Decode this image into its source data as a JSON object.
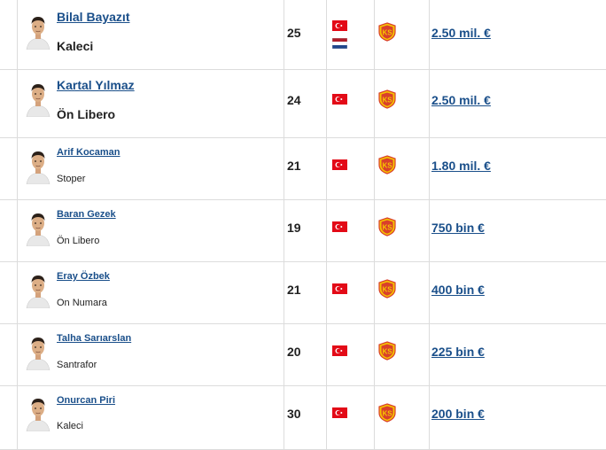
{
  "colors": {
    "link": "#1a4f8a",
    "turkey_red": "#e30a17",
    "club_red": "#d9402b",
    "club_yellow": "#f5c400"
  },
  "icons": {
    "flag_turkey": "turkey-flag-icon",
    "flag_netherlands": "netherlands-flag-icon",
    "club": "kayserispor-badge-icon"
  },
  "players": [
    {
      "name": "Bilal Bayazıt",
      "position": "Kaleci",
      "age": "25",
      "flags": [
        "turkey",
        "netherlands"
      ],
      "club_badge": "KS",
      "market_value": "2.50 mil. €"
    },
    {
      "name": "Kartal Yılmaz",
      "position": "Ön Libero",
      "age": "24",
      "flags": [
        "turkey"
      ],
      "club_badge": "KS",
      "market_value": "2.50 mil. €"
    },
    {
      "name": "Arif Kocaman",
      "position": "Stoper",
      "age": "21",
      "flags": [
        "turkey"
      ],
      "club_badge": "KS",
      "market_value": "1.80 mil. €"
    },
    {
      "name": "Baran Gezek",
      "position": "Ön Libero",
      "age": "19",
      "flags": [
        "turkey"
      ],
      "club_badge": "KS",
      "market_value": "750 bin €"
    },
    {
      "name": "Eray Özbek",
      "position": "On Numara",
      "age": "21",
      "flags": [
        "turkey"
      ],
      "club_badge": "KS",
      "market_value": "400 bin €"
    },
    {
      "name": "Talha Sarıarslan",
      "position": "Santrafor",
      "age": "20",
      "flags": [
        "turkey"
      ],
      "club_badge": "KS",
      "market_value": "225 bin €"
    },
    {
      "name": "Onurcan Piri",
      "position": "Kaleci",
      "age": "30",
      "flags": [
        "turkey"
      ],
      "club_badge": "KS",
      "market_value": "200 bin €"
    }
  ]
}
